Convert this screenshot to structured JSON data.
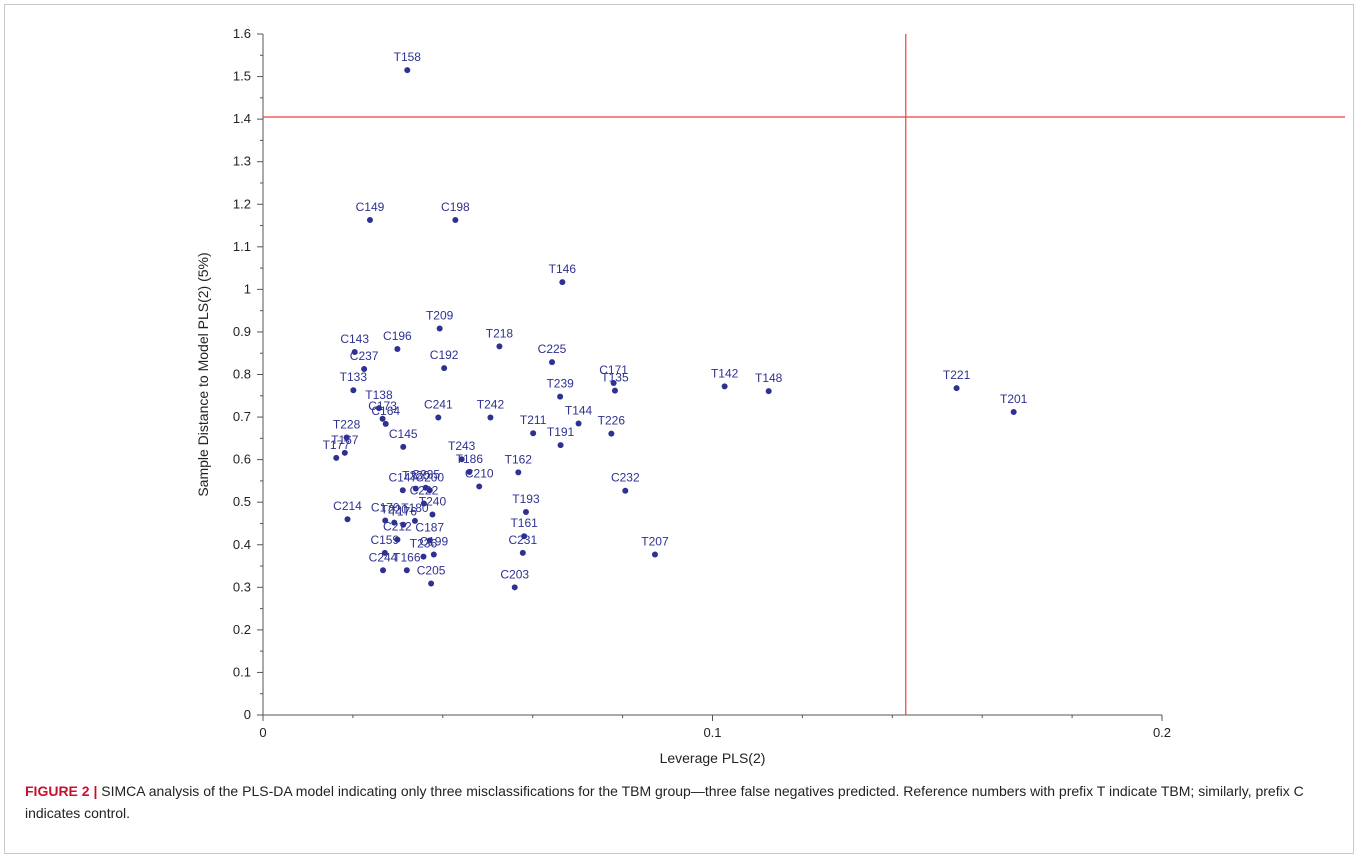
{
  "figure": {
    "label": "FIGURE 2 |",
    "caption": " SIMCA analysis of the PLS-DA model indicating only three misclassifications for the TBM group—three false negatives predicted. Reference numbers with prefix T indicate TBM; similarly, prefix C indicates control."
  },
  "colors": {
    "point": "#2e3192",
    "reference_line": "#e8423f",
    "axis": "#555555"
  },
  "chart_data": {
    "type": "scatter",
    "title": "",
    "xlabel": "Leverage PLS(2)",
    "ylabel": "Sample Distance to Model  PLS(2) (5%)",
    "xlim": [
      0,
      0.2
    ],
    "ylim": [
      0,
      1.6
    ],
    "x_ticks": [
      0,
      0.1,
      0.2
    ],
    "x_tick_labels": [
      "0",
      "0.1",
      "0.2"
    ],
    "y_ticks": [
      0,
      0.1,
      0.2,
      0.3,
      0.4,
      0.5,
      0.6,
      0.7,
      0.8,
      0.9,
      1,
      1.1,
      1.2,
      1.3,
      1.4,
      1.5,
      1.6
    ],
    "y_tick_labels": [
      "0",
      "0.1",
      "0.2",
      "0.3",
      "0.4",
      "0.5",
      "0.6",
      "0.7",
      "0.8",
      "0.9",
      "1",
      "1.1",
      "1.2",
      "1.3",
      "1.4",
      "1.5",
      "1.6"
    ],
    "grid": false,
    "legend": "none",
    "reference_lines": {
      "x": 0.143,
      "y": 1.405
    },
    "points": [
      {
        "label": "T158",
        "x": 0.0321,
        "y": 1.515
      },
      {
        "label": "C149",
        "x": 0.0238,
        "y": 1.163
      },
      {
        "label": "C198",
        "x": 0.0428,
        "y": 1.163
      },
      {
        "label": "T146",
        "x": 0.0666,
        "y": 1.017
      },
      {
        "label": "T209",
        "x": 0.0393,
        "y": 0.908
      },
      {
        "label": "T218",
        "x": 0.0526,
        "y": 0.866
      },
      {
        "label": "C196",
        "x": 0.0299,
        "y": 0.86
      },
      {
        "label": "C143",
        "x": 0.0204,
        "y": 0.853
      },
      {
        "label": "C237",
        "x": 0.0225,
        "y": 0.813
      },
      {
        "label": "C225",
        "x": 0.0643,
        "y": 0.829
      },
      {
        "label": "C192",
        "x": 0.0403,
        "y": 0.815
      },
      {
        "label": "T133",
        "x": 0.0201,
        "y": 0.763
      },
      {
        "label": "C171",
        "x": 0.078,
        "y": 0.78
      },
      {
        "label": "T135",
        "x": 0.0783,
        "y": 0.762
      },
      {
        "label": "T142",
        "x": 0.1027,
        "y": 0.772
      },
      {
        "label": "T148",
        "x": 0.1125,
        "y": 0.761
      },
      {
        "label": "T221",
        "x": 0.1543,
        "y": 0.768
      },
      {
        "label": "T201",
        "x": 0.167,
        "y": 0.712
      },
      {
        "label": "T239",
        "x": 0.0661,
        "y": 0.748
      },
      {
        "label": "T138",
        "x": 0.0258,
        "y": 0.721
      },
      {
        "label": "C173",
        "x": 0.0266,
        "y": 0.696
      },
      {
        "label": "C164",
        "x": 0.0273,
        "y": 0.684
      },
      {
        "label": "C241",
        "x": 0.039,
        "y": 0.699
      },
      {
        "label": "T242",
        "x": 0.0506,
        "y": 0.699
      },
      {
        "label": "T144",
        "x": 0.0702,
        "y": 0.685
      },
      {
        "label": "T211",
        "x": 0.0601,
        "y": 0.662
      },
      {
        "label": "T226",
        "x": 0.0775,
        "y": 0.661
      },
      {
        "label": "T191",
        "x": 0.0662,
        "y": 0.634
      },
      {
        "label": "T228",
        "x": 0.0186,
        "y": 0.652
      },
      {
        "label": "T167",
        "x": 0.0182,
        "y": 0.616
      },
      {
        "label": "T177",
        "x": 0.0163,
        "y": 0.604
      },
      {
        "label": "C145",
        "x": 0.0312,
        "y": 0.63
      },
      {
        "label": "T243",
        "x": 0.0442,
        "y": 0.601
      },
      {
        "label": "T186",
        "x": 0.0459,
        "y": 0.571
      },
      {
        "label": "T162",
        "x": 0.0568,
        "y": 0.57
      },
      {
        "label": "C210",
        "x": 0.0481,
        "y": 0.537
      },
      {
        "label": "C147",
        "x": 0.0311,
        "y": 0.528
      },
      {
        "label": "T230",
        "x": 0.034,
        "y": 0.532
      },
      {
        "label": "C235",
        "x": 0.0362,
        "y": 0.534
      },
      {
        "label": "C200",
        "x": 0.0371,
        "y": 0.528
      },
      {
        "label": "C232",
        "x": 0.0806,
        "y": 0.527
      },
      {
        "label": "C222",
        "x": 0.0358,
        "y": 0.497
      },
      {
        "label": "T240",
        "x": 0.0377,
        "y": 0.471
      },
      {
        "label": "T193",
        "x": 0.0585,
        "y": 0.477
      },
      {
        "label": "C214",
        "x": 0.0188,
        "y": 0.46
      },
      {
        "label": "T220",
        "x": 0.0292,
        "y": 0.452
      },
      {
        "label": "C170",
        "x": 0.0272,
        "y": 0.457
      },
      {
        "label": "T176",
        "x": 0.0312,
        "y": 0.447
      },
      {
        "label": "T180",
        "x": 0.0338,
        "y": 0.456
      },
      {
        "label": "C187",
        "x": 0.0371,
        "y": 0.41
      },
      {
        "label": "T161",
        "x": 0.0581,
        "y": 0.42
      },
      {
        "label": "C212",
        "x": 0.0299,
        "y": 0.412
      },
      {
        "label": "C159",
        "x": 0.0271,
        "y": 0.381
      },
      {
        "label": "T236",
        "x": 0.0357,
        "y": 0.372
      },
      {
        "label": "C199",
        "x": 0.038,
        "y": 0.377
      },
      {
        "label": "C231",
        "x": 0.0578,
        "y": 0.381
      },
      {
        "label": "T207",
        "x": 0.0872,
        "y": 0.377
      },
      {
        "label": "C244",
        "x": 0.0267,
        "y": 0.34
      },
      {
        "label": "T166",
        "x": 0.032,
        "y": 0.34
      },
      {
        "label": "C205",
        "x": 0.0374,
        "y": 0.309
      },
      {
        "label": "C203",
        "x": 0.056,
        "y": 0.3
      }
    ]
  }
}
